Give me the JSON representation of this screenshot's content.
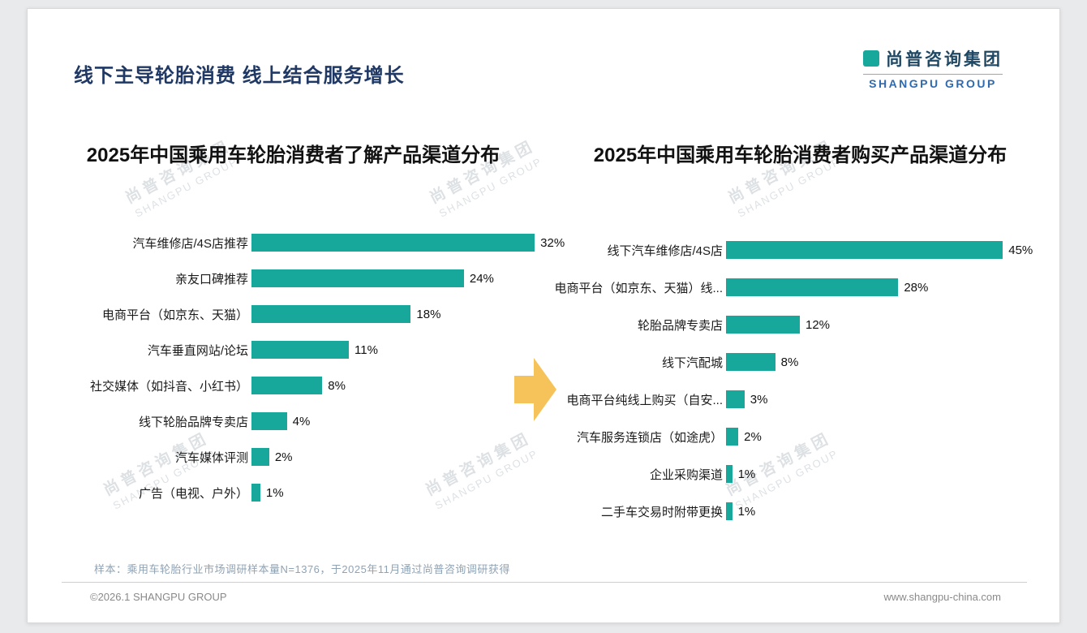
{
  "page": {
    "header_title": "线下主导轮胎消费 线上结合服务增长",
    "logo": {
      "cn": "尚普咨询集团",
      "en": "SHANGPU GROUP"
    },
    "watermark": {
      "line1": "尚普咨询集团",
      "line2": "SHANGPU GROUP"
    },
    "footnote": "样本：乘用车轮胎行业市场调研样本量N=1376，于2025年11月通过尚普咨询调研获得",
    "footer_left": "©2026.1 SHANGPU GROUP",
    "footer_right": "www.shangpu-china.com"
  },
  "colors": {
    "bar": "#17A79B",
    "arrow": "#F6C35B",
    "title": "#1F3864"
  },
  "chart_data": [
    {
      "type": "bar",
      "orientation": "horizontal",
      "title": "2025年中国乘用车轮胎消费者了解产品渠道分布",
      "categories": [
        "汽车维修店/4S店推荐",
        "亲友口碑推荐",
        "电商平台（如京东、天猫）",
        "汽车垂直网站/论坛",
        "社交媒体（如抖音、小红书）",
        "线下轮胎品牌专卖店",
        "汽车媒体评测",
        "广告（电视、户外）"
      ],
      "values": [
        32,
        24,
        18,
        11,
        8,
        4,
        2,
        1
      ],
      "unit": "%",
      "xlim": [
        0,
        34
      ],
      "grid": false,
      "legend": "none",
      "xlabel": "",
      "ylabel": ""
    },
    {
      "type": "bar",
      "orientation": "horizontal",
      "title": "2025年中国乘用车轮胎消费者购买产品渠道分布",
      "categories": [
        "线下汽车维修店/4S店",
        "电商平台（如京东、天猫）线...",
        "轮胎品牌专卖店",
        "线下汽配城",
        "电商平台纯线上购买（自安...",
        "汽车服务连锁店（如途虎）",
        "企业采购渠道",
        "二手车交易时附带更换"
      ],
      "values": [
        45,
        28,
        12,
        8,
        3,
        2,
        1,
        1
      ],
      "unit": "%",
      "xlim": [
        0,
        48
      ],
      "grid": false,
      "legend": "none",
      "xlabel": "",
      "ylabel": ""
    }
  ]
}
